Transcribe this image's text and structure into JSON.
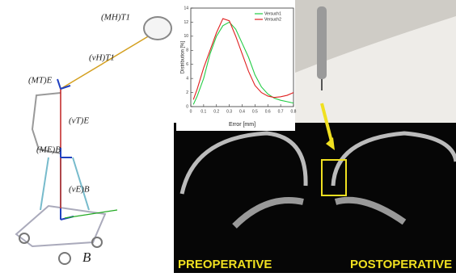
{
  "chart_data": {
    "type": "line",
    "x_label": "Error [mm]",
    "y_label": "Distribution [%]",
    "x": [
      0.02,
      0.05,
      0.1,
      0.15,
      0.2,
      0.25,
      0.3,
      0.35,
      0.4,
      0.45,
      0.5,
      0.55,
      0.6,
      0.65,
      0.7,
      0.75,
      0.8
    ],
    "series": [
      {
        "name": "Versuch1",
        "color": "#22cc44",
        "values": [
          0.3,
          1.5,
          4,
          7.5,
          10,
          11.5,
          12,
          11,
          9,
          7,
          4.5,
          2.8,
          1.8,
          1.2,
          0.9,
          0.7,
          0.5
        ]
      },
      {
        "name": "Versuch2",
        "color": "#e02020",
        "values": [
          1,
          2.5,
          5.5,
          8,
          10.5,
          12.5,
          12.2,
          10,
          7.5,
          5,
          3,
          2,
          1.5,
          1.3,
          1.4,
          1.6,
          2
        ]
      }
    ],
    "xlim": [
      0,
      0.8
    ],
    "xticks": [
      0,
      0.1,
      0.2,
      0.3,
      0.4,
      0.5,
      0.6,
      0.7,
      0.8
    ],
    "ylim": [
      0,
      14
    ],
    "yticks": [
      0,
      2,
      4,
      6,
      8,
      10,
      12,
      14
    ],
    "legend": "upper right"
  },
  "diagram": {
    "labels": [
      "(MH)T1",
      "(vH)T1",
      "(MT)E",
      "(vT)E",
      "(ME)B",
      "(vE)B",
      "B"
    ]
  },
  "ct_scan": {
    "left_label": "PREOPERATIVE",
    "right_label": "POSTOPERATIVE"
  }
}
